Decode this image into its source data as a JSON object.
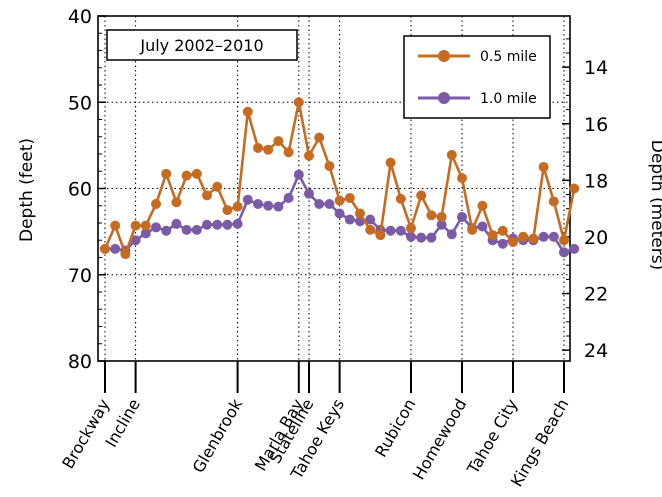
{
  "chart_data": {
    "type": "line",
    "annotation": "July 2002–2010",
    "ylabel": "Depth (feet)",
    "ylabel_right": "Depth (meters)",
    "ylim": [
      80,
      40
    ],
    "yticks": [
      40,
      50,
      60,
      70,
      80
    ],
    "yticks_right": [
      14,
      16,
      18,
      20,
      22,
      24
    ],
    "grid": true,
    "legend_position": "top-right",
    "locations": [
      "Brockway",
      "Incline",
      "Glenbrook",
      "Marla Bay",
      "Stateline",
      "Tahoe Keys",
      "Rubicon",
      "Homewood",
      "Tahoe City",
      "Kings Beach"
    ],
    "x": [
      0,
      1,
      2,
      3,
      4,
      5,
      6,
      7,
      8,
      9,
      10,
      11,
      12,
      13,
      14,
      15,
      16,
      17,
      18,
      19,
      20,
      21,
      22,
      23,
      24,
      25,
      26,
      27,
      28,
      29,
      30,
      31,
      32,
      33,
      34,
      35,
      36,
      37,
      38,
      39,
      40,
      41,
      42,
      43,
      44,
      45,
      46
    ],
    "series": [
      {
        "name": "0.5 mile",
        "color": "#c56b22",
        "values": [
          67.0,
          64.3,
          67.6,
          64.3,
          64.3,
          61.8,
          58.3,
          61.6,
          58.5,
          58.3,
          60.8,
          59.8,
          62.5,
          62.1,
          51.1,
          55.3,
          55.5,
          54.5,
          55.8,
          50.0,
          56.2,
          54.1,
          57.4,
          61.4,
          61.1,
          62.9,
          64.8,
          65.4,
          57.0,
          61.2,
          64.6,
          60.8,
          63.1,
          63.3,
          56.1,
          58.8,
          64.8,
          62.0,
          65.4,
          64.9,
          66.2,
          65.6,
          65.8,
          57.5,
          61.5,
          66.0,
          60.0
        ],
        "value_note": ""
      },
      {
        "name": "1.0 mile",
        "color": "#7b5ba6",
        "values": [
          67.0,
          67.0,
          67.2,
          66.0,
          65.2,
          64.5,
          64.9,
          64.1,
          64.8,
          64.8,
          64.2,
          64.2,
          64.2,
          64.1,
          61.3,
          61.8,
          62.0,
          62.1,
          61.1,
          58.4,
          60.6,
          61.8,
          61.8,
          62.9,
          63.6,
          63.8,
          63.6,
          64.8,
          64.9,
          64.9,
          65.6,
          65.7,
          65.7,
          64.2,
          65.3,
          63.3,
          64.6,
          64.4,
          66.0,
          66.4,
          65.8,
          66.0,
          66.0,
          65.6,
          65.6,
          67.4,
          67.0
        ]
      }
    ]
  }
}
